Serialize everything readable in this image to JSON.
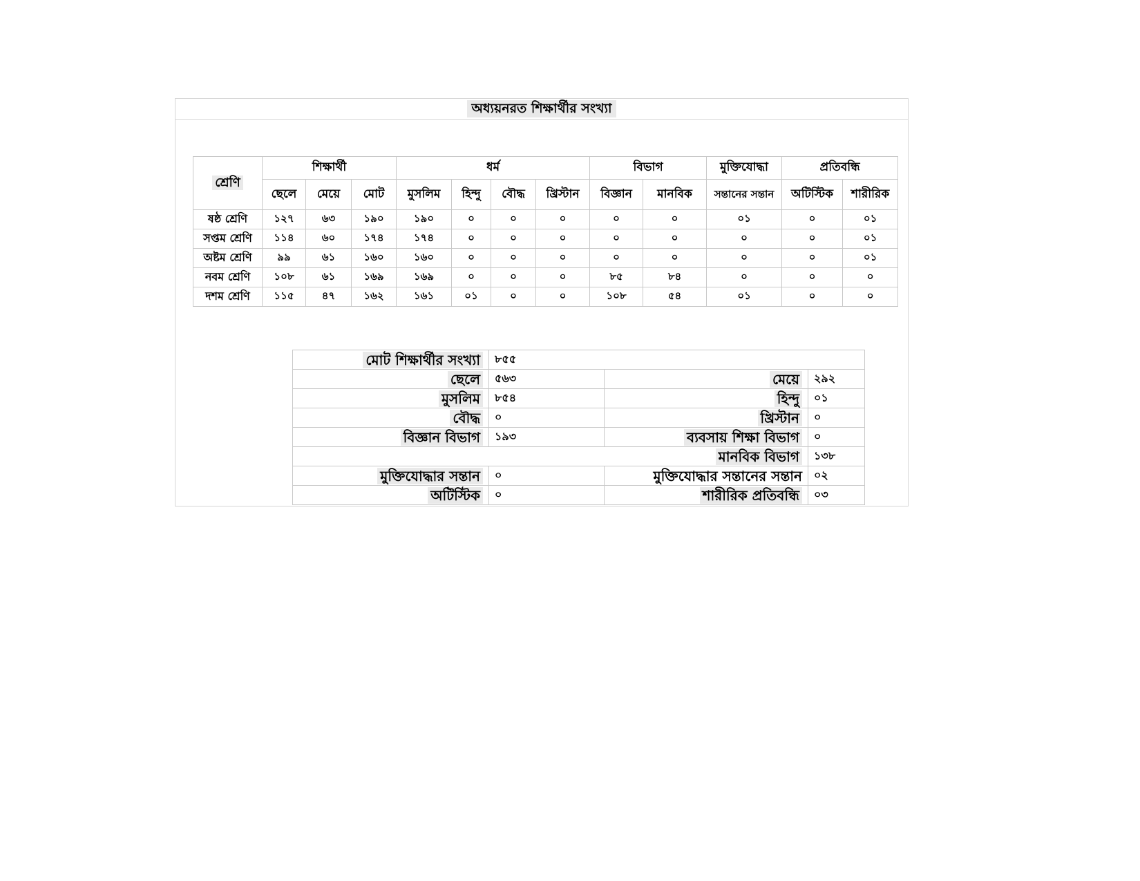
{
  "title": "অধ্যয়নরত শিক্ষার্থীর সংখ্যা",
  "colors": {
    "highlight": "#e9e9e9",
    "border": "#c8c8c8",
    "text": "#000000",
    "background": "#ffffff"
  },
  "main_table": {
    "corner_header": "শ্রেণি",
    "groups": [
      {
        "label": "শিক্ষার্থী",
        "span": 3
      },
      {
        "label": "ধর্ম",
        "span": 4
      },
      {
        "label": "বিভাগ",
        "span": 2
      },
      {
        "label": "মুক্তিযোদ্ধা",
        "span": 1
      },
      {
        "label": "প্রতিবন্ধি",
        "span": 2
      }
    ],
    "sub_headers": [
      "ছেলে",
      "মেয়ে",
      "মোট",
      "মুসলিম",
      "হিন্দু",
      "বৌদ্ধ",
      "খ্রিস্টান",
      "বিজ্ঞান",
      "মানবিক",
      "সন্তানের সন্তান",
      "অটিস্টিক",
      "শারীরিক"
    ],
    "rows": [
      {
        "label": "ষষ্ঠ শ্রেণি",
        "values": [
          "১২৭",
          "৬৩",
          "১৯০",
          "১৯০",
          "০",
          "০",
          "০",
          "০",
          "০",
          "০১",
          "০",
          "০১"
        ]
      },
      {
        "label": "সপ্তম শ্রেণি",
        "values": [
          "১১৪",
          "৬০",
          "১৭৪",
          "১৭৪",
          "০",
          "০",
          "০",
          "০",
          "০",
          "০",
          "০",
          "০১"
        ]
      },
      {
        "label": "অষ্টম শ্রেণি",
        "values": [
          "৯৯",
          "৬১",
          "১৬০",
          "১৬০",
          "০",
          "০",
          "০",
          "০",
          "০",
          "০",
          "০",
          "০১"
        ]
      },
      {
        "label": "নবম শ্রেণি",
        "values": [
          "১০৮",
          "৬১",
          "১৬৯",
          "১৬৯",
          "০",
          "০",
          "০",
          "৮৫",
          "৮৪",
          "০",
          "০",
          "০"
        ]
      },
      {
        "label": "দশম শ্রেণি",
        "values": [
          "১১৫",
          "৪৭",
          "১৬২",
          "১৬১",
          "০১",
          "০",
          "০",
          "১০৮",
          "৫৪",
          "০১",
          "০",
          "০"
        ]
      }
    ]
  },
  "summary_table": {
    "rows": [
      {
        "label1": "মোট শিক্ষার্থীর সংখ্যা",
        "hl1": true,
        "value1": "৮৫৫",
        "label2": "",
        "hl2": false,
        "value2": "",
        "merge": "right"
      },
      {
        "label1": "ছেলে",
        "hl1": true,
        "value1": "৫৬৩",
        "label2": "মেয়ে",
        "hl2": true,
        "value2": "২৯২",
        "merge": "none"
      },
      {
        "label1": "মুসলিম",
        "hl1": true,
        "value1": "৮৫৪",
        "label2": "হিন্দু",
        "hl2": true,
        "value2": "০১",
        "merge": "none"
      },
      {
        "label1": "বৌদ্ধ",
        "hl1": true,
        "value1": "০",
        "label2": "খ্রিস্টান",
        "hl2": true,
        "value2": "০",
        "merge": "none"
      },
      {
        "label1": "বিজ্ঞান বিভাগ",
        "hl1": true,
        "value1": "১৯৩",
        "label2": "ব্যবসায় শিক্ষা বিভাগ",
        "hl2": true,
        "value2": "০",
        "merge": "none"
      },
      {
        "label1": "",
        "hl1": false,
        "value1": "",
        "label2": "মানবিক বিভাগ",
        "hl2": true,
        "value2": "১৩৮",
        "merge": "left"
      },
      {
        "label1": "মুক্তিযোদ্ধার সন্তান",
        "hl1": true,
        "value1": "০",
        "label2": "মুক্তিযোদ্ধার সন্তানের সন্তান",
        "hl2": false,
        "value2": "০২",
        "merge": "none"
      },
      {
        "label1": "অটিস্টিক",
        "hl1": true,
        "value1": "০",
        "label2": "শারীরিক প্রতিবন্ধি",
        "hl2": true,
        "value2": "০৩",
        "merge": "none"
      }
    ]
  }
}
